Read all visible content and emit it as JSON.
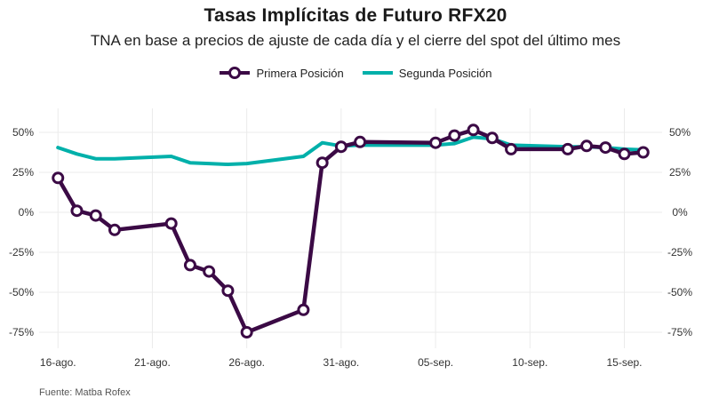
{
  "title": "Tasas Implícitas de Futuro RFX20",
  "subtitle": "TNA en base a precios de ajuste de cada día y el cierre del spot del último mes",
  "source": "Fuente: Matba Rofex",
  "chart_data": {
    "type": "line",
    "title": "Tasas Implícitas de Futuro RFX20",
    "subtitle": "TNA en base a precios de ajuste de cada día y el cierre del spot del último mes",
    "xlabel": "",
    "ylabel": "",
    "y_unit": "%",
    "ylim": [
      -85,
      65
    ],
    "yticks": [
      50,
      25,
      0,
      -25,
      -50,
      -75
    ],
    "ytick_labels": [
      "50%",
      "25%",
      "0%",
      "-25%",
      "-50%",
      "-75%"
    ],
    "y_axis_both_sides": true,
    "x_dates": [
      "2020-08-16",
      "2020-08-21",
      "2020-08-26",
      "2020-08-31",
      "2020-09-05",
      "2020-09-10",
      "2020-09-15"
    ],
    "xtick_labels": [
      "16-ago.",
      "21-ago.",
      "26-ago.",
      "31-ago.",
      "05-sep.",
      "10-sep.",
      "15-sep."
    ],
    "xlim": [
      "2020-08-15",
      "2020-09-17"
    ],
    "grid": true,
    "legend_position": "top",
    "series": [
      {
        "name": "Primera Posición",
        "color": "#3b0a45",
        "markers": true,
        "points": [
          {
            "x": "2020-08-16",
            "y": 21.5
          },
          {
            "x": "2020-08-17",
            "y": 1
          },
          {
            "x": "2020-08-18",
            "y": -2
          },
          {
            "x": "2020-08-19",
            "y": -11
          },
          {
            "x": "2020-08-22",
            "y": -7
          },
          {
            "x": "2020-08-23",
            "y": -33
          },
          {
            "x": "2020-08-24",
            "y": -37
          },
          {
            "x": "2020-08-25",
            "y": -49
          },
          {
            "x": "2020-08-26",
            "y": -75
          },
          {
            "x": "2020-08-29",
            "y": -61
          },
          {
            "x": "2020-08-30",
            "y": 31
          },
          {
            "x": "2020-08-31",
            "y": 41
          },
          {
            "x": "2020-09-01",
            "y": 44
          },
          {
            "x": "2020-09-05",
            "y": 43.5
          },
          {
            "x": "2020-09-06",
            "y": 48
          },
          {
            "x": "2020-09-07",
            "y": 51.5
          },
          {
            "x": "2020-09-08",
            "y": 46.5
          },
          {
            "x": "2020-09-09",
            "y": 39.5
          },
          {
            "x": "2020-09-12",
            "y": 39.5
          },
          {
            "x": "2020-09-13",
            "y": 41.5
          },
          {
            "x": "2020-09-14",
            "y": 40.5
          },
          {
            "x": "2020-09-15",
            "y": 36.5
          },
          {
            "x": "2020-09-16",
            "y": 37.5
          }
        ]
      },
      {
        "name": "Segunda Posición",
        "color": "#00b0aa",
        "markers": false,
        "points": [
          {
            "x": "2020-08-16",
            "y": 40.5
          },
          {
            "x": "2020-08-17",
            "y": 36.5
          },
          {
            "x": "2020-08-18",
            "y": 33.5
          },
          {
            "x": "2020-08-19",
            "y": 33.5
          },
          {
            "x": "2020-08-22",
            "y": 35
          },
          {
            "x": "2020-08-23",
            "y": 31
          },
          {
            "x": "2020-08-24",
            "y": 30.5
          },
          {
            "x": "2020-08-25",
            "y": 30
          },
          {
            "x": "2020-08-26",
            "y": 30.5
          },
          {
            "x": "2020-08-29",
            "y": 35
          },
          {
            "x": "2020-08-30",
            "y": 43.5
          },
          {
            "x": "2020-08-31",
            "y": 41.5
          },
          {
            "x": "2020-09-01",
            "y": 42
          },
          {
            "x": "2020-09-05",
            "y": 42
          },
          {
            "x": "2020-09-06",
            "y": 43
          },
          {
            "x": "2020-09-07",
            "y": 47
          },
          {
            "x": "2020-09-08",
            "y": 46
          },
          {
            "x": "2020-09-09",
            "y": 42
          },
          {
            "x": "2020-09-12",
            "y": 41
          },
          {
            "x": "2020-09-13",
            "y": 41
          },
          {
            "x": "2020-09-14",
            "y": 40.5
          },
          {
            "x": "2020-09-15",
            "y": 39.5
          },
          {
            "x": "2020-09-16",
            "y": 39
          }
        ]
      }
    ]
  }
}
